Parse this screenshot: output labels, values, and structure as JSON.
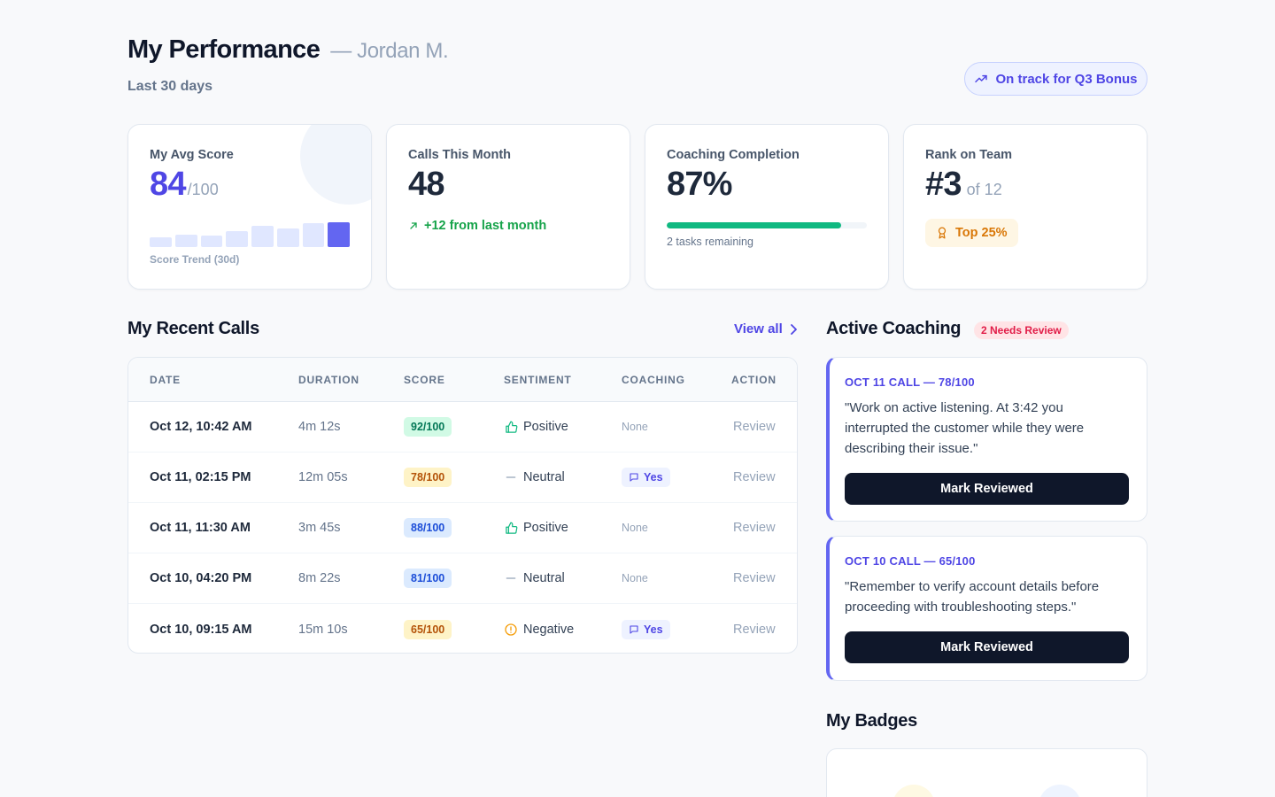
{
  "header": {
    "title": "My Performance",
    "owner": "— Jordan M.",
    "subtitle": "Last 30 days",
    "bonus_status": "On track for Q3 Bonus"
  },
  "stats": {
    "avg_score": {
      "label": "My Avg Score",
      "value": "84",
      "unit": "/100",
      "trend_caption": "Score Trend (30d)",
      "trend_levels": [
        0.4,
        0.5,
        0.45,
        0.65,
        0.85,
        0.75,
        0.95,
        1.0
      ]
    },
    "calls": {
      "label": "Calls This Month",
      "value": "48",
      "delta": "+12 from last month"
    },
    "coaching": {
      "label": "Coaching Completion",
      "value": "87%",
      "progress": 0.87,
      "note": "2 tasks remaining"
    },
    "rank": {
      "label": "Rank on Team",
      "value": "#3",
      "of": "of 12",
      "badge": "Top 25%"
    }
  },
  "recent_calls": {
    "title": "My Recent Calls",
    "view_all": "View all",
    "columns": [
      "DATE",
      "DURATION",
      "SCORE",
      "SENTIMENT",
      "COACHING",
      "ACTION"
    ],
    "rows": [
      {
        "date": "Oct 12, 10:42 AM",
        "duration": "4m 12s",
        "score": "92/100",
        "score_tone": "green",
        "sentiment": "Positive",
        "sentiment_icon": "thumbs-up-icon",
        "coaching": "None",
        "action": "Review"
      },
      {
        "date": "Oct 11, 02:15 PM",
        "duration": "12m 05s",
        "score": "78/100",
        "score_tone": "amber",
        "sentiment": "Neutral",
        "sentiment_icon": "dash-icon",
        "coaching": "Yes",
        "action": "Review"
      },
      {
        "date": "Oct 11, 11:30 AM",
        "duration": "3m 45s",
        "score": "88/100",
        "score_tone": "blue",
        "sentiment": "Positive",
        "sentiment_icon": "thumbs-up-icon",
        "coaching": "None",
        "action": "Review"
      },
      {
        "date": "Oct 10, 04:20 PM",
        "duration": "8m 22s",
        "score": "81/100",
        "score_tone": "blue",
        "sentiment": "Neutral",
        "sentiment_icon": "dash-icon",
        "coaching": "None",
        "action": "Review"
      },
      {
        "date": "Oct 10, 09:15 AM",
        "duration": "15m 10s",
        "score": "65/100",
        "score_tone": "amber",
        "sentiment": "Negative",
        "sentiment_icon": "alert-circle-icon",
        "coaching": "Yes",
        "action": "Review"
      }
    ]
  },
  "coaching": {
    "title": "Active Coaching",
    "needs_review": "2 Needs Review",
    "items": [
      {
        "meta": "OCT 11 CALL — 78/100",
        "note": "\"Work on active listening. At 3:42 you interrupted the customer while they were describing their issue.\"",
        "button": "Mark Reviewed"
      },
      {
        "meta": "OCT 10 CALL — 65/100",
        "note": "\"Remember to verify account details before proceeding with troubleshooting steps.\"",
        "button": "Mark Reviewed"
      }
    ]
  },
  "badges": {
    "title": "My Badges"
  },
  "colors": {
    "accent": "#4f46e5",
    "success": "#16a34a",
    "progress": "#10b981",
    "warning": "#d97706",
    "danger": "#e11d48"
  }
}
